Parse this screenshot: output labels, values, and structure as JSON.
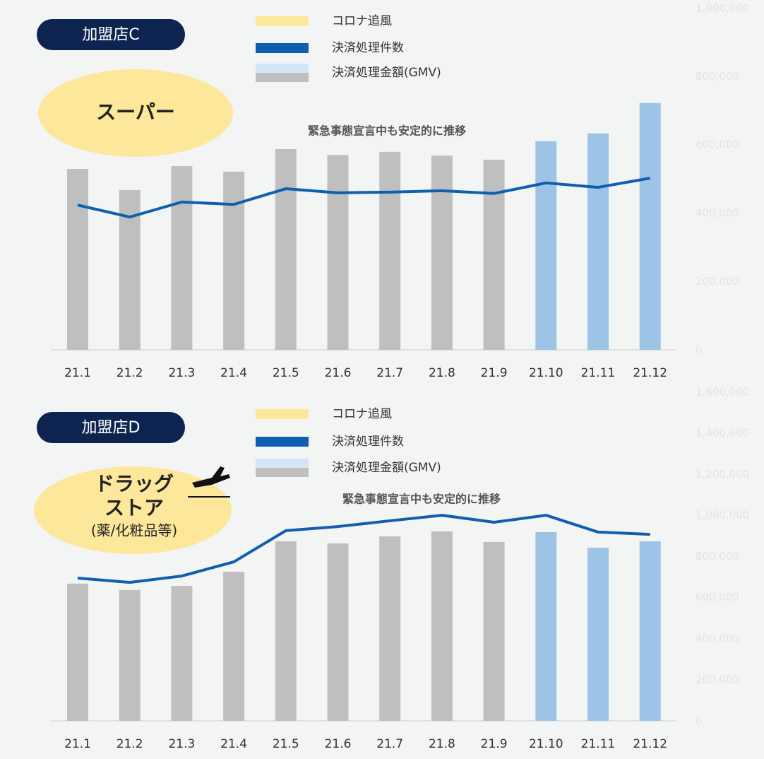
{
  "chart_data": [
    {
      "type": "bar_line",
      "badge": "加盟店C",
      "label_lines": [
        "スーパー"
      ],
      "annotation": "緊急事態宣言中も安定的に推移",
      "highlight": {
        "name": "コロナ追風",
        "color": "#fde79a"
      },
      "categories": [
        "21.1",
        "21.2",
        "21.3",
        "21.4",
        "21.5",
        "21.6",
        "21.7",
        "21.8",
        "21.9",
        "21.10",
        "21.11",
        "21.12"
      ],
      "series": [
        {
          "name": "決済処理金額(GMV)",
          "type": "bar",
          "colors": [
            "#bfbfbf",
            "#bfbfbf",
            "#bfbfbf",
            "#bfbfbf",
            "#bfbfbf",
            "#bfbfbf",
            "#bfbfbf",
            "#bfbfbf",
            "#bfbfbf",
            "#9dc3e6",
            "#9dc3e6",
            "#9dc3e6"
          ],
          "values": [
            530000,
            468000,
            538000,
            522000,
            588000,
            571000,
            580000,
            569000,
            557000,
            611000,
            634000,
            723000
          ]
        },
        {
          "name": "決済処理件数",
          "type": "line",
          "color": "#0f5fb0",
          "values": [
            424000,
            389000,
            433000,
            426000,
            472000,
            460000,
            462000,
            466000,
            458000,
            489000,
            476000,
            503000
          ]
        }
      ],
      "ylim": [
        0,
        1000000
      ],
      "yticks": [
        0,
        {
          "value": 200000,
          "label": "200,000"
        },
        {
          "value": 400000,
          "label": "400,000"
        },
        {
          "value": 600000,
          "label": "600,000"
        },
        {
          "value": 800000,
          "label": "800,000"
        },
        {
          "value": 1000000,
          "label": "1,000,000"
        }
      ]
    },
    {
      "type": "bar_line",
      "badge": "加盟店D",
      "label_lines": [
        "ドラッグ",
        "ストア",
        "(薬/化粧品等)"
      ],
      "annotation": "緊急事態宣言中も安定的に推移",
      "highlight": {
        "name": "コロナ追風",
        "color": "#fde79a"
      },
      "categories": [
        "21.1",
        "21.2",
        "21.3",
        "21.4",
        "21.5",
        "21.6",
        "21.7",
        "21.8",
        "21.9",
        "21.10",
        "21.11",
        "21.12"
      ],
      "series": [
        {
          "name": "決済処理金額(GMV)",
          "type": "bar",
          "colors": [
            "#bfbfbf",
            "#bfbfbf",
            "#bfbfbf",
            "#bfbfbf",
            "#bfbfbf",
            "#bfbfbf",
            "#bfbfbf",
            "#bfbfbf",
            "#bfbfbf",
            "#9dc3e6",
            "#9dc3e6",
            "#9dc3e6"
          ],
          "values": [
            668000,
            637000,
            657000,
            726000,
            874000,
            864000,
            898000,
            922000,
            871000,
            919000,
            843000,
            874000
          ]
        },
        {
          "name": "決済処理件数",
          "type": "line",
          "color": "#0f5fb0",
          "values": [
            695000,
            674000,
            705000,
            774000,
            926000,
            946000,
            974000,
            1001000,
            967000,
            1001000,
            919000,
            908000
          ]
        }
      ],
      "ylim": [
        0,
        1600000
      ],
      "yticks": [
        0,
        {
          "value": 200000,
          "label": "200,000"
        },
        {
          "value": 400000,
          "label": "400,000"
        },
        {
          "value": 600000,
          "label": "600,000"
        },
        {
          "value": 800000,
          "label": "800,000"
        },
        {
          "value": 1000000,
          "label": "1,000,000"
        },
        {
          "value": 1200000,
          "label": "1,200,000"
        },
        {
          "value": 1400000,
          "label": "1,400,000"
        },
        {
          "value": 1600000,
          "label": "1,600,000"
        }
      ]
    }
  ]
}
